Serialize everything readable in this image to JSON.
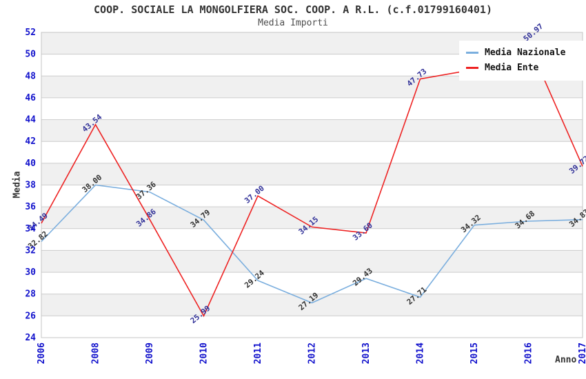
{
  "header": {
    "title": "COOP. SOCIALE LA MONGOLFIERA SOC. COOP. A R.L. (c.f.01799160401)",
    "subtitle": "Media Importi"
  },
  "legend": {
    "entries": [
      {
        "label": "Media Nazionale",
        "color": "#7aaede"
      },
      {
        "label": "Media Ente",
        "color": "#ee2222"
      }
    ]
  },
  "axis_titles": {
    "y": "Media",
    "x": "Anno"
  },
  "chart_data": {
    "type": "line",
    "title": "COOP. SOCIALE LA MONGOLFIERA SOC. COOP. A R.L. (c.f.01799160401)",
    "subtitle": "Media Importi",
    "xlabel": "Anno",
    "ylabel": "Media",
    "categories": [
      "2006",
      "2008",
      "2009",
      "2010",
      "2011",
      "2012",
      "2013",
      "2014",
      "2015",
      "2016",
      "2017"
    ],
    "ylim": [
      24,
      52
    ],
    "ytick_step": 2,
    "grid": "horizontal gridlines with alternating gray/white bands",
    "legend_position": "top-right inside plot",
    "series": [
      {
        "name": "Media Nazionale",
        "color": "#7aaede",
        "label_color": "#333333",
        "values": [
          32.82,
          38.0,
          37.36,
          34.79,
          29.24,
          27.19,
          29.43,
          27.71,
          34.32,
          34.68,
          34.83
        ]
      },
      {
        "name": "Media Ente",
        "color": "#ee2222",
        "label_color": "#333399",
        "values": [
          34.49,
          43.54,
          34.86,
          25.99,
          37.0,
          34.15,
          33.6,
          47.73,
          48.6,
          50.97,
          39.72
        ],
        "hidden_label_indices": [
          8
        ],
        "estimated_value_indices": [
          8
        ],
        "label_offsets": {
          "9": [
            22,
            -24
          ]
        }
      }
    ],
    "styles": {
      "tick_label_color": "#1111cc",
      "grid_color": "#cccccc",
      "band_color": "#f0f0f0",
      "plot_border_color": "#c4c4c4",
      "plot_background": "#ffffff"
    }
  }
}
